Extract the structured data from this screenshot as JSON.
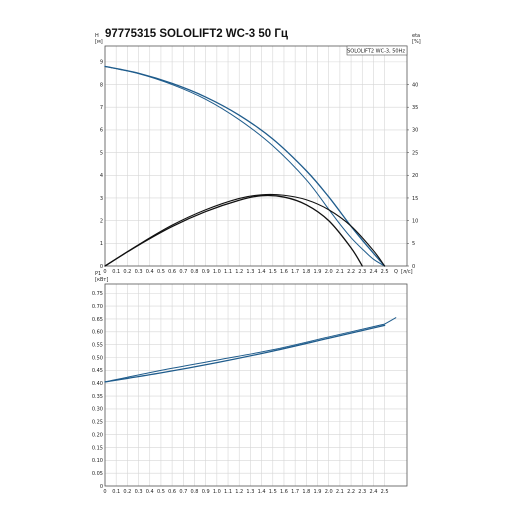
{
  "header": {
    "title": "97775315 SOLOLIFT2 WC-3 50 Гц"
  },
  "colors": {
    "blue": "#1f5c8c",
    "black": "#111111",
    "grid": "#d6d6d6",
    "frame": "#555555"
  },
  "chart_data": [
    {
      "type": "line",
      "legend": {
        "text": "SOLOLIFT2 WC-3, 50Hz",
        "placement": "top-right"
      },
      "grid": true,
      "x_axis": {
        "label": "Q",
        "unit": "[л/с]",
        "ticks": [
          "0",
          "0.1",
          "0.2",
          "0.3",
          "0.4",
          "0.5",
          "0.6",
          "0.7",
          "0.8",
          "0.9",
          "1.0",
          "1.1",
          "1.2",
          "1.3",
          "1.4",
          "1.5",
          "1.6",
          "1.7",
          "1.8",
          "1.9",
          "2.0",
          "2.1",
          "2.2",
          "2.3",
          "2.4",
          "2.5"
        ],
        "range": [
          0,
          2.7
        ]
      },
      "y_left": {
        "label": "H",
        "unit": "[м]",
        "ticks": [
          "0",
          "1",
          "2",
          "3",
          "4",
          "5",
          "6",
          "7",
          "8",
          "9"
        ],
        "range": [
          0,
          9.7
        ]
      },
      "y_right": {
        "label": "eta",
        "unit": "[%]",
        "ticks": [
          "0",
          "5",
          "10",
          "15",
          "20",
          "25",
          "30",
          "35",
          "40"
        ],
        "range": [
          0,
          48.5
        ]
      },
      "series": [
        {
          "axis": "left",
          "color": "#1f5c8c",
          "width": 1.3,
          "x": [
            0,
            0.3,
            0.6,
            0.9,
            1.2,
            1.5,
            1.8,
            2.0,
            2.2,
            2.35,
            2.5
          ],
          "y": [
            8.8,
            8.5,
            8.05,
            7.45,
            6.65,
            5.6,
            4.2,
            3.05,
            1.75,
            0.85,
            0
          ]
        },
        {
          "axis": "left",
          "color": "#1f5c8c",
          "width": 1.0,
          "x": [
            0,
            0.3,
            0.6,
            0.9,
            1.2,
            1.5,
            1.8,
            2.0,
            2.1,
            2.2,
            2.3,
            2.4,
            2.5
          ],
          "y": [
            8.8,
            8.48,
            8.0,
            7.35,
            6.45,
            5.3,
            3.8,
            2.5,
            1.85,
            1.25,
            0.75,
            0.3,
            0
          ]
        },
        {
          "axis": "right",
          "color": "#111111",
          "width": 1.3,
          "x": [
            0,
            0.3,
            0.6,
            0.9,
            1.2,
            1.4,
            1.6,
            1.8,
            2.0,
            2.2,
            2.3
          ],
          "y": [
            0,
            4.6,
            8.7,
            12.0,
            14.5,
            15.5,
            15.2,
            13.5,
            10.0,
            4.0,
            0
          ]
        },
        {
          "axis": "right",
          "color": "#111111",
          "width": 1.1,
          "x": [
            0,
            0.3,
            0.6,
            0.9,
            1.2,
            1.4,
            1.6,
            1.8,
            2.0,
            2.2,
            2.4,
            2.5
          ],
          "y": [
            0,
            4.7,
            9.0,
            12.4,
            14.9,
            15.7,
            15.6,
            14.6,
            12.4,
            8.8,
            3.4,
            0
          ]
        }
      ]
    },
    {
      "type": "line",
      "grid": true,
      "x_axis": {
        "ticks": [
          "0",
          "0.1",
          "0.2",
          "0.3",
          "0.4",
          "0.5",
          "0.6",
          "0.7",
          "0.8",
          "0.9",
          "1.0",
          "1.1",
          "1.2",
          "1.3",
          "1.4",
          "1.5",
          "1.6",
          "1.7",
          "1.8",
          "1.9",
          "2.0",
          "2.1",
          "2.2",
          "2.3",
          "2.4",
          "2.5"
        ],
        "range": [
          0,
          2.7
        ]
      },
      "y_left": {
        "label": "P1",
        "unit": "[кВт]",
        "ticks": [
          "0",
          "0.05",
          "0.10",
          "0.15",
          "0.20",
          "0.25",
          "0.30",
          "0.35",
          "0.40",
          "0.45",
          "0.50",
          "0.55",
          "0.60",
          "0.65",
          "0.70",
          "0.75"
        ],
        "range": [
          0,
          0.786
        ]
      },
      "series": [
        {
          "color": "#1f5c8c",
          "width": 1.3,
          "x": [
            0,
            0.5,
            1.0,
            1.5,
            2.0,
            2.5
          ],
          "y": [
            0.405,
            0.44,
            0.48,
            0.525,
            0.575,
            0.625
          ]
        },
        {
          "color": "#1f5c8c",
          "width": 1.0,
          "x": [
            0,
            0.5,
            1.0,
            1.5,
            2.0,
            2.5
          ],
          "y": [
            0.405,
            0.45,
            0.49,
            0.53,
            0.58,
            0.63
          ]
        },
        {
          "color": "#1f5c8c",
          "width": 1.0,
          "x": [
            2.5,
            2.6
          ],
          "y": [
            0.63,
            0.655
          ]
        }
      ]
    }
  ]
}
